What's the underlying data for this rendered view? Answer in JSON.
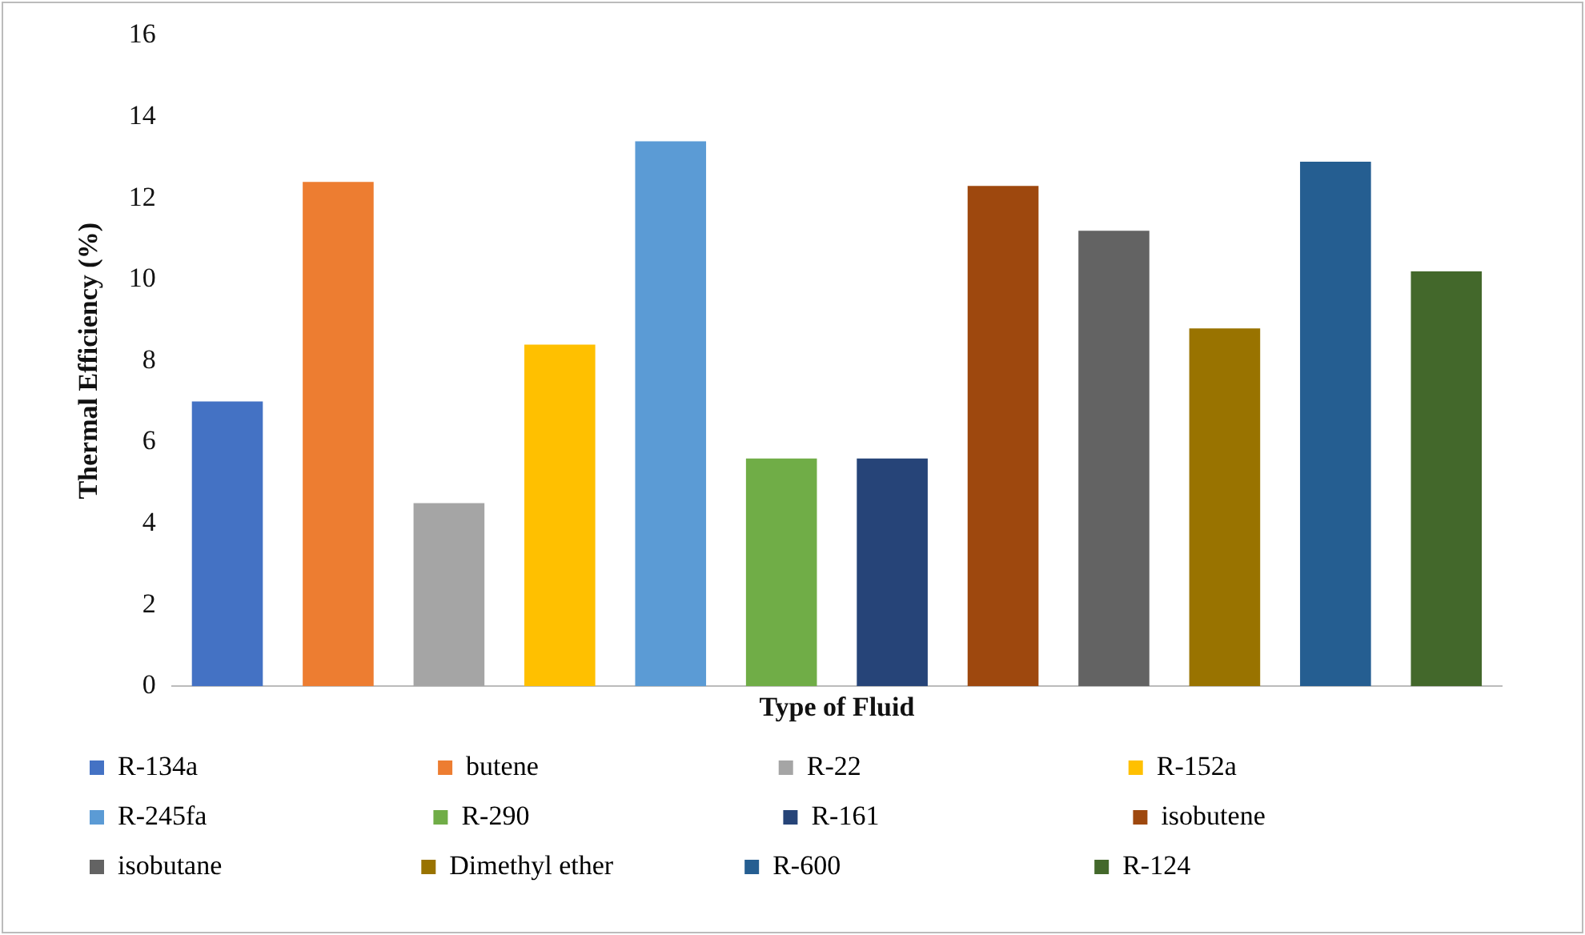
{
  "chart_data": {
    "type": "bar",
    "xlabel": "Type of Fluid",
    "ylabel": "Thermal Efficiency (%)",
    "categories": [
      null,
      null,
      null,
      null,
      null,
      null,
      null,
      null,
      null,
      null,
      null,
      null
    ],
    "series": [
      {
        "name": "R-134a",
        "color": "#4472c4",
        "values": [
          7.0,
          null,
          null,
          null,
          null,
          null,
          null,
          null,
          null,
          null,
          null,
          null
        ]
      },
      {
        "name": "butene",
        "color": "#ed7d31",
        "values": [
          null,
          12.4,
          null,
          null,
          null,
          null,
          null,
          null,
          null,
          null,
          null,
          null
        ]
      },
      {
        "name": "R-22",
        "color": "#a5a5a5",
        "values": [
          null,
          null,
          4.5,
          null,
          null,
          null,
          null,
          null,
          null,
          null,
          null,
          null
        ]
      },
      {
        "name": "R-152a",
        "color": "#ffc000",
        "values": [
          null,
          null,
          null,
          8.4,
          null,
          null,
          null,
          null,
          null,
          null,
          null,
          null
        ]
      },
      {
        "name": "R-245fa",
        "color": "#5b9bd5",
        "values": [
          null,
          null,
          null,
          null,
          13.4,
          null,
          null,
          null,
          null,
          null,
          null,
          null
        ]
      },
      {
        "name": "R-290",
        "color": "#70ad47",
        "values": [
          null,
          null,
          null,
          null,
          null,
          5.6,
          null,
          null,
          null,
          null,
          null,
          null
        ]
      },
      {
        "name": "R-161",
        "color": "#264478",
        "values": [
          null,
          null,
          null,
          null,
          null,
          null,
          5.6,
          null,
          null,
          null,
          null,
          null
        ]
      },
      {
        "name": "isobutene",
        "color": "#9e480e",
        "values": [
          null,
          null,
          null,
          null,
          null,
          null,
          null,
          12.3,
          null,
          null,
          null,
          null
        ]
      },
      {
        "name": "isobutane",
        "color": "#636363",
        "values": [
          null,
          null,
          null,
          null,
          null,
          null,
          null,
          null,
          11.2,
          null,
          null,
          null
        ]
      },
      {
        "name": "Dimethyl ether",
        "color": "#997300",
        "values": [
          null,
          null,
          null,
          null,
          null,
          null,
          null,
          null,
          null,
          8.8,
          null,
          null
        ]
      },
      {
        "name": "R-600",
        "color": "#255e91",
        "values": [
          null,
          null,
          null,
          null,
          null,
          null,
          null,
          null,
          null,
          null,
          12.9,
          null
        ]
      },
      {
        "name": "R-124",
        "color": "#43682b",
        "values": [
          null,
          null,
          null,
          null,
          null,
          null,
          null,
          null,
          null,
          null,
          null,
          10.2
        ]
      }
    ],
    "ylim": [
      0,
      16
    ],
    "yticks": [
      0,
      2,
      4,
      6,
      8,
      10,
      12,
      14,
      16
    ],
    "grid": false,
    "legend": "bottom",
    "tick_labels": "y"
  }
}
